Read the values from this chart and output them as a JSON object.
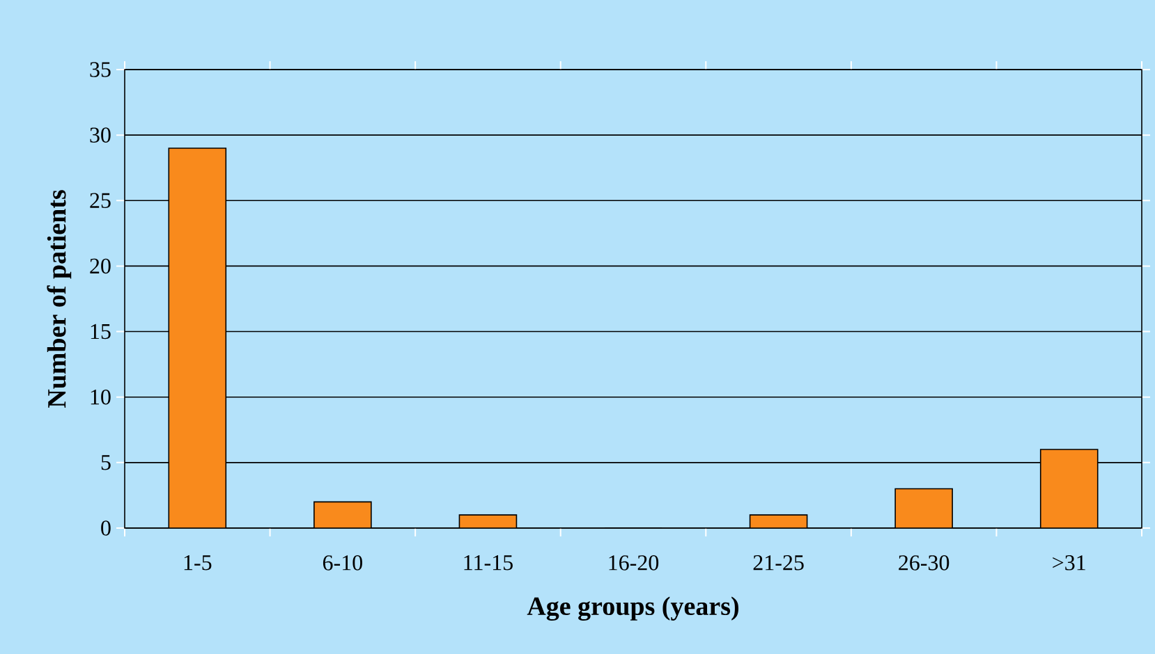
{
  "chart_data": {
    "type": "bar",
    "xlabel": "Age groups (years)",
    "ylabel": "Number of patients",
    "categories": [
      "1-5",
      "6-10",
      "11-15",
      "16-20",
      "21-25",
      "26-30",
      ">31"
    ],
    "values": [
      29,
      2,
      1,
      0,
      1,
      3,
      6
    ],
    "color": "#f98a1c",
    "ylim": [
      0,
      35
    ],
    "yticks": [
      0,
      5,
      10,
      15,
      20,
      25,
      30,
      35
    ],
    "grid": "y"
  }
}
